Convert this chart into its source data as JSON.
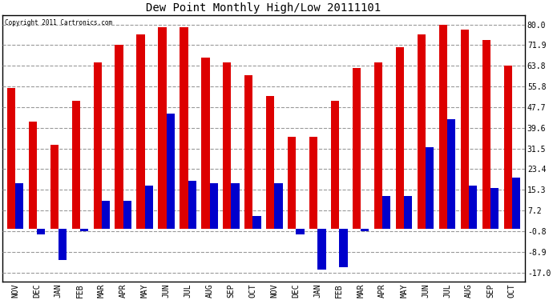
{
  "title": "Dew Point Monthly High/Low 20111101",
  "copyright": "Copyright 2011 Cartronics.com",
  "months": [
    "NOV",
    "DEC",
    "JAN",
    "FEB",
    "MAR",
    "APR",
    "MAY",
    "JUN",
    "JUL",
    "AUG",
    "SEP",
    "OCT",
    "NOV",
    "DEC",
    "JAN",
    "FEB",
    "MAR",
    "APR",
    "MAY",
    "JUN",
    "JUL",
    "AUG",
    "SEP",
    "OCT"
  ],
  "highs": [
    55.0,
    42.0,
    33.0,
    50.0,
    65.0,
    72.0,
    76.0,
    79.0,
    79.0,
    67.0,
    65.0,
    60.0,
    52.0,
    36.0,
    36.0,
    50.0,
    63.0,
    65.0,
    71.0,
    76.0,
    80.0,
    78.0,
    74.0,
    64.0
  ],
  "lows": [
    18.0,
    -2.0,
    -12.0,
    -1.0,
    11.0,
    11.0,
    17.0,
    45.0,
    19.0,
    18.0,
    18.0,
    5.0,
    18.0,
    -2.0,
    -16.0,
    -15.0,
    -1.0,
    13.0,
    13.0,
    32.0,
    43.0,
    17.0,
    16.0,
    20.0
  ],
  "bar_width": 0.38,
  "high_color": "#dd0000",
  "low_color": "#0000cc",
  "background_color": "#ffffff",
  "grid_color": "#999999",
  "yticks": [
    -17.0,
    -8.9,
    -0.8,
    7.2,
    15.3,
    23.4,
    31.5,
    39.6,
    47.7,
    55.8,
    63.8,
    71.9,
    80.0
  ],
  "ylim": [
    -20.5,
    83.5
  ],
  "figwidth": 6.9,
  "figheight": 3.75,
  "dpi": 100
}
